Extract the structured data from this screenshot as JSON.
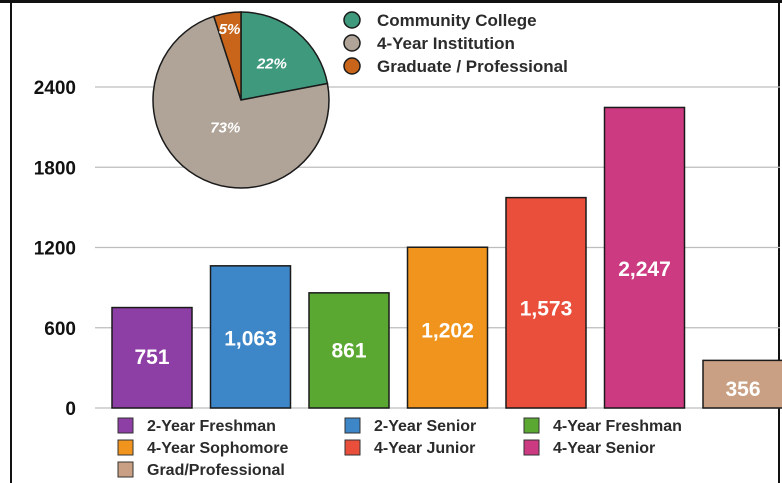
{
  "chart_data": [
    {
      "type": "bar",
      "categories": [
        "2-Year Freshman",
        "2-Year Senior",
        "4-Year Freshman",
        "4-Year Sophomore",
        "4-Year Junior",
        "4-Year Senior",
        "Grad/Professional"
      ],
      "values": [
        751,
        1063,
        861,
        1202,
        1573,
        2247,
        356
      ],
      "value_labels": [
        "751",
        "1,063",
        "861",
        "1,202",
        "1,573",
        "2,247",
        "356"
      ],
      "colors": [
        "#8e3fa6",
        "#3d86c8",
        "#5aa832",
        "#f0941e",
        "#ea4f3c",
        "#cc3a82",
        "#c9a083"
      ],
      "yticks": [
        "0",
        "600",
        "1200",
        "1800",
        "2400"
      ],
      "ylim": [
        0,
        2400
      ],
      "grid": true,
      "legend_position": "bottom"
    },
    {
      "type": "pie",
      "labels": [
        "Community College",
        "4-Year Institution",
        "Graduate / Professional"
      ],
      "values": [
        22,
        73,
        5
      ],
      "value_labels": [
        "22%",
        "73%",
        "5%"
      ],
      "colors": [
        "#3f9a7d",
        "#b0a498",
        "#c8651b"
      ],
      "legend_position": "top-right"
    }
  ]
}
